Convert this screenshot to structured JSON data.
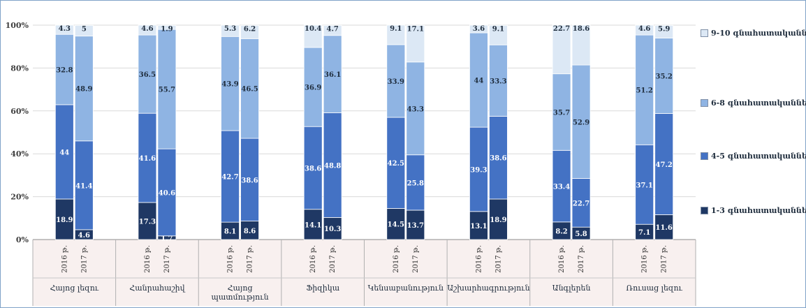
{
  "chart_data": {
    "type": "bar",
    "stacked": true,
    "groups": [
      "Հայոց լեզու",
      "Հանրահաշիվ",
      "Հայոց պատմություն",
      "Ֆիզիկա",
      "Կենսաբանություն",
      "Աշխարհագրություն",
      "Անգլերեն",
      "Ռուսաց լեզու"
    ],
    "years": [
      "2016 թ.",
      "2017 թ."
    ],
    "series": [
      {
        "name": "1-3 գնահատականներ",
        "color": "#1f3864",
        "values": [
          [
            18.9,
            4.6
          ],
          [
            17.3,
            1.7
          ],
          [
            8.1,
            8.6
          ],
          [
            14.1,
            10.3
          ],
          [
            14.5,
            13.7
          ],
          [
            13.1,
            18.9
          ],
          [
            8.2,
            5.8
          ],
          [
            7.1,
            11.6
          ]
        ]
      },
      {
        "name": "4-5 գնահատականներ",
        "color": "#4472c4",
        "values": [
          [
            44,
            41.4
          ],
          [
            41.6,
            40.6
          ],
          [
            42.7,
            38.6
          ],
          [
            38.6,
            48.8
          ],
          [
            42.5,
            25.8
          ],
          [
            39.3,
            38.6
          ],
          [
            33.4,
            22.7
          ],
          [
            37.1,
            47.2
          ]
        ]
      },
      {
        "name": "6-8 գնահատականներ",
        "color": "#8fb4e3",
        "values": [
          [
            32.8,
            48.9
          ],
          [
            36.5,
            55.7
          ],
          [
            43.9,
            46.5
          ],
          [
            36.9,
            36.1
          ],
          [
            33.9,
            43.3
          ],
          [
            44,
            33.3
          ],
          [
            35.7,
            52.9
          ],
          [
            51.2,
            35.2
          ]
        ]
      },
      {
        "name": "9-10 գնահատականներ",
        "color": "#dce8f5",
        "values": [
          [
            4.3,
            5
          ],
          [
            4.6,
            1.9
          ],
          [
            5.3,
            6.2
          ],
          [
            10.4,
            4.7
          ],
          [
            9.1,
            17.1
          ],
          [
            3.6,
            9.1
          ],
          [
            22.7,
            18.6
          ],
          [
            4.6,
            5.9
          ]
        ]
      }
    ],
    "yticks": [
      "0%",
      "20%",
      "40%",
      "60%",
      "80%",
      "100%"
    ],
    "ylim": [
      0,
      100
    ],
    "grid": true,
    "legend_position": "right"
  }
}
